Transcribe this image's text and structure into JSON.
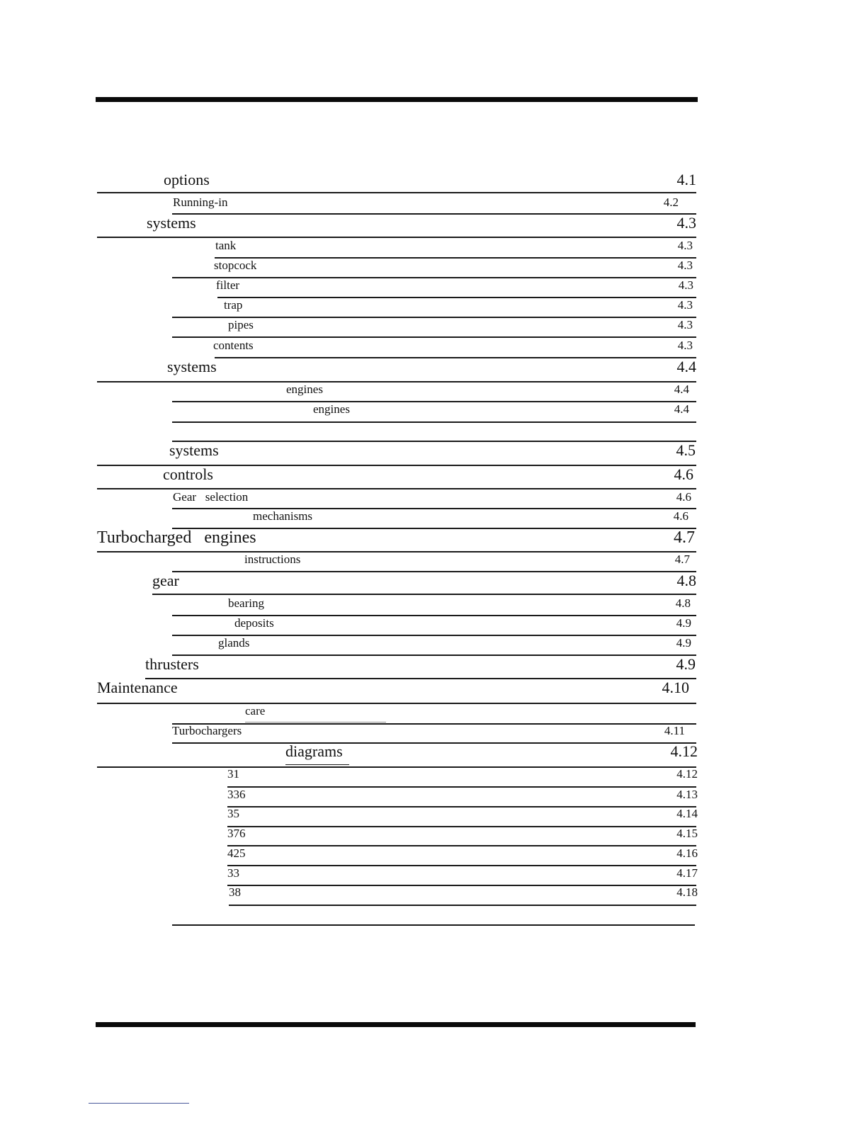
{
  "toc": {
    "entries": [
      {
        "label": "options",
        "page": "4.1"
      },
      {
        "label": "Running-in",
        "page": "4.2"
      },
      {
        "label": "systems",
        "page": "4.3"
      },
      {
        "label": "tank",
        "page": "4.3"
      },
      {
        "label": "stopcock",
        "page": "4.3"
      },
      {
        "label": "filter",
        "page": "4.3"
      },
      {
        "label": "trap",
        "page": "4.3"
      },
      {
        "label": "pipes",
        "page": "4.3"
      },
      {
        "label": "contents",
        "page": "4.3"
      },
      {
        "label": "systems",
        "page": "4.4"
      },
      {
        "label": "engines",
        "page": "4.4"
      },
      {
        "label": "engines",
        "page": "4.4"
      },
      {
        "label": "systems",
        "page": "4.5"
      },
      {
        "label": "controls",
        "page": "4.6"
      },
      {
        "label": "Gear   selection",
        "page": "4.6"
      },
      {
        "label": "mechanisms",
        "page": "4.6"
      },
      {
        "label": "Turbocharged   engines",
        "page": "4.7"
      },
      {
        "label": "instructions",
        "page": "4.7"
      },
      {
        "label": "gear",
        "page": "4.8"
      },
      {
        "label": "bearing",
        "page": "4.8"
      },
      {
        "label": "deposits",
        "page": "4.9"
      },
      {
        "label": "glands",
        "page": "4.9"
      },
      {
        "label": "thrusters",
        "page": "4.9"
      },
      {
        "label": "Maintenance",
        "page": "4.10"
      },
      {
        "label": "care",
        "page": ""
      },
      {
        "label": "Turbochargers",
        "page": "4.11"
      },
      {
        "label": "diagrams",
        "page": "4.12"
      },
      {
        "label": "31",
        "page": "4.12"
      },
      {
        "label": "336",
        "page": "4.13"
      },
      {
        "label": "35",
        "page": "4.14"
      },
      {
        "label": "376",
        "page": "4.15"
      },
      {
        "label": "425",
        "page": "4.16"
      },
      {
        "label": "33",
        "page": "4.17"
      },
      {
        "label": "38",
        "page": "4.18"
      }
    ]
  }
}
